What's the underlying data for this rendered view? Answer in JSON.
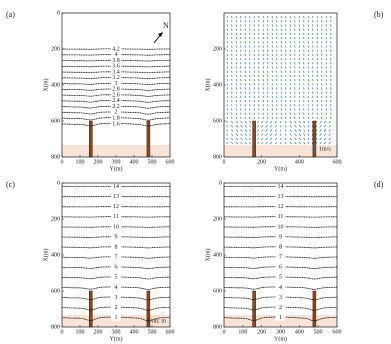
{
  "chart_data": [
    {
      "type": "contour",
      "label": "(a)",
      "xlabel": "Y(m)",
      "ylabel": "X(m)",
      "north_label": "N",
      "xlim": [
        0,
        600
      ],
      "ylim": [
        0,
        800
      ],
      "xticks": [
        0,
        100,
        200,
        300,
        400,
        500,
        600
      ],
      "yticks": [
        0,
        200,
        400,
        600,
        800
      ],
      "levels": [
        4.2,
        4,
        3.8,
        3.6,
        3.4,
        3.2,
        3,
        2.8,
        2.6,
        2.4,
        2.2,
        2,
        1.8,
        1.6
      ],
      "level_x": [
        200,
        232,
        264,
        296,
        328,
        360,
        392,
        424,
        456,
        488,
        520,
        552,
        584,
        616
      ]
    },
    {
      "type": "vector",
      "label": "(b)",
      "xlabel": "Y(m)",
      "ylabel": "X(m)",
      "scale_label": "1m/s",
      "xlim": [
        0,
        600
      ],
      "ylim": [
        0,
        800
      ],
      "xticks": [
        0,
        200,
        400,
        600
      ],
      "yticks": [
        200,
        400,
        600,
        800
      ]
    },
    {
      "type": "contour",
      "label": "(c)",
      "xlabel": "Y(m)",
      "ylabel": "X(m)",
      "unit_label": "Unit: m",
      "xlim": [
        0,
        600
      ],
      "ylim": [
        0,
        800
      ],
      "xticks": [
        0,
        100,
        200,
        300,
        400,
        500,
        600
      ],
      "yticks": [
        0,
        200,
        400,
        600,
        800
      ],
      "levels": [
        14,
        13,
        12,
        11,
        10,
        9,
        8,
        7,
        6,
        5,
        4,
        3,
        2,
        1
      ],
      "level_x": [
        20,
        76,
        132,
        188,
        244,
        300,
        356,
        412,
        468,
        524,
        580,
        636,
        692,
        748
      ]
    },
    {
      "type": "contour",
      "label": "(d)",
      "xlabel": "Y(m)",
      "ylabel": "X(m)",
      "xlim": [
        0,
        600
      ],
      "ylim": [
        0,
        800
      ],
      "xticks": [
        0,
        100,
        200,
        300,
        400,
        500,
        600
      ],
      "yticks": [
        0,
        200,
        400,
        600,
        800
      ],
      "levels": [
        14,
        13,
        12,
        11,
        10,
        9,
        8,
        7,
        6,
        5,
        4,
        3,
        2,
        1
      ],
      "level_x": [
        20,
        76,
        132,
        188,
        244,
        300,
        356,
        412,
        468,
        524,
        580,
        636,
        692,
        748
      ]
    }
  ]
}
